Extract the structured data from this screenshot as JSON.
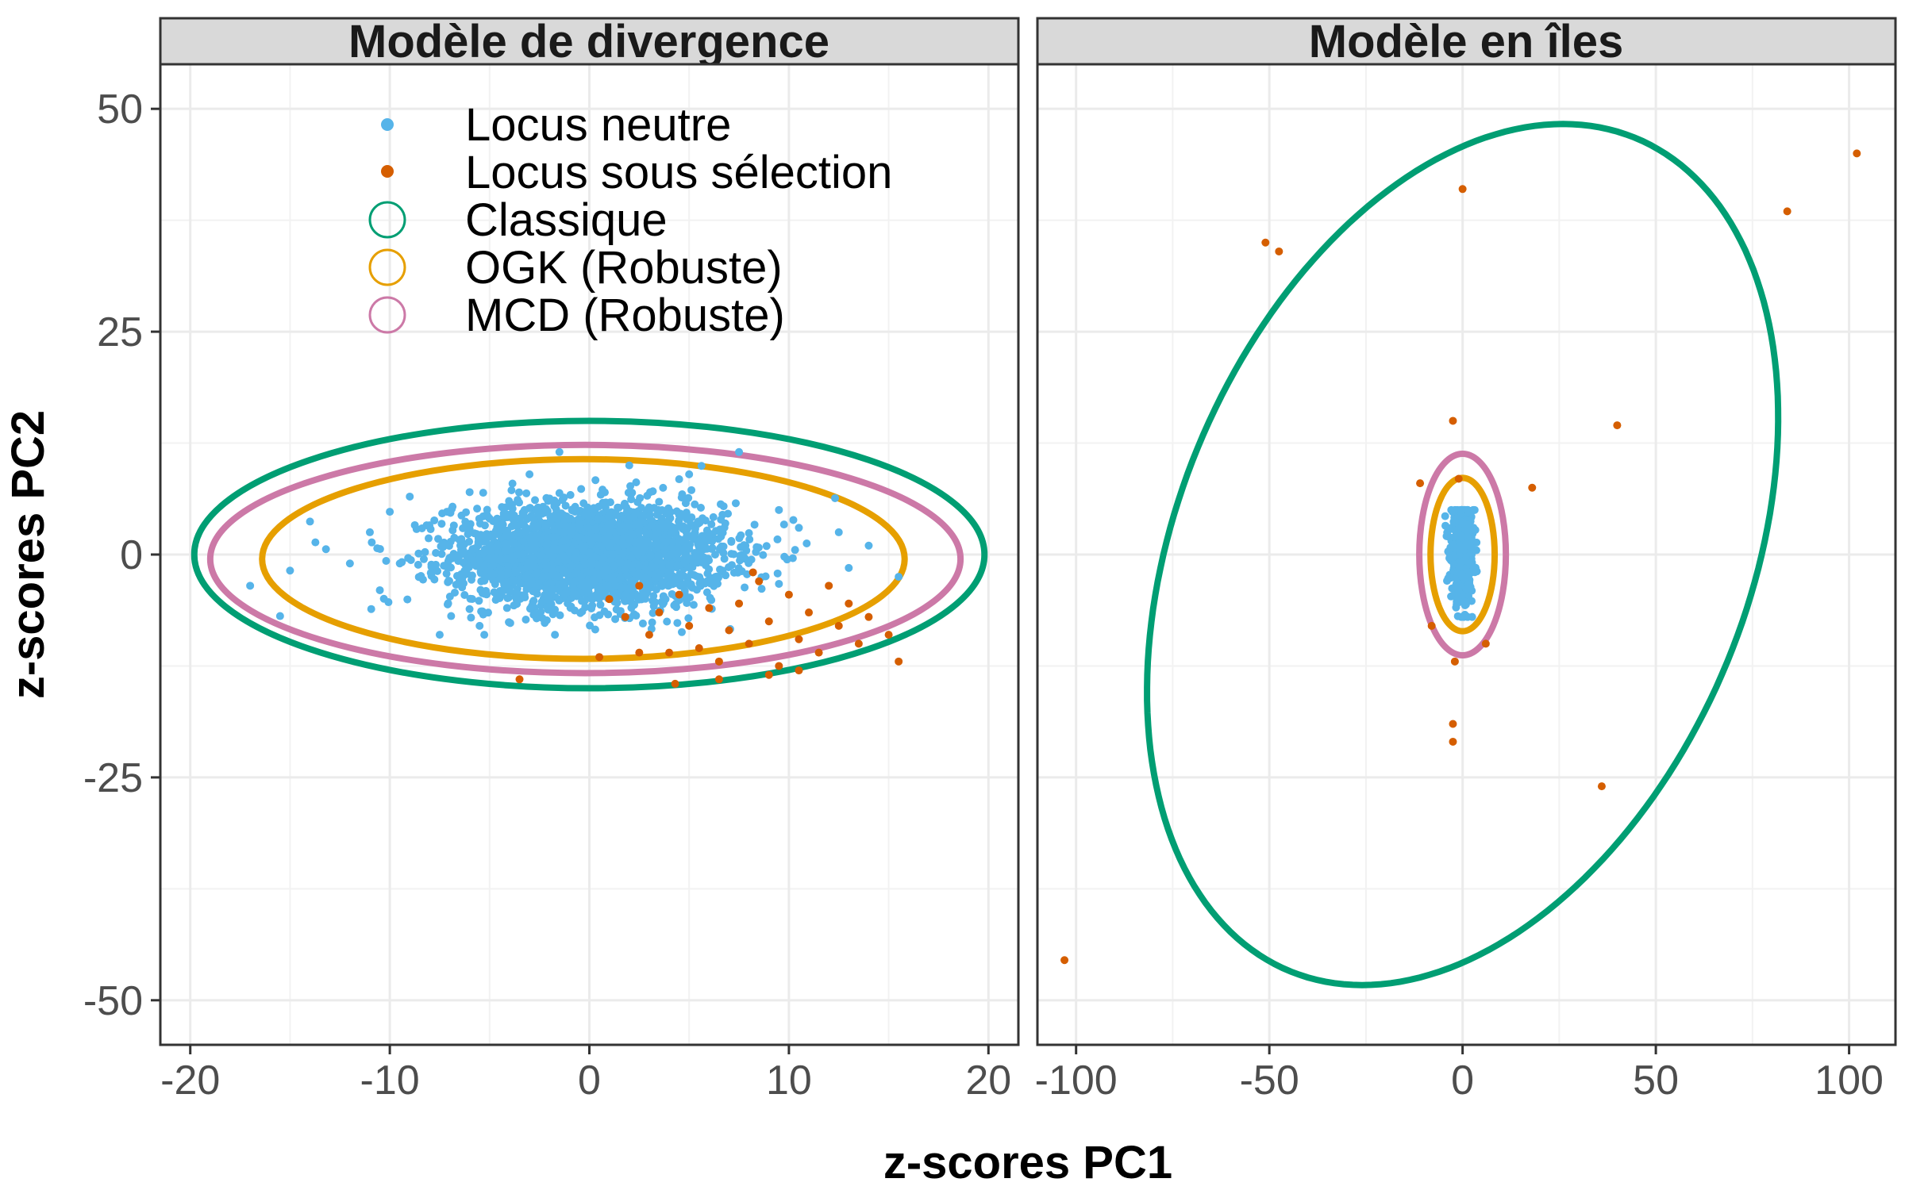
{
  "figure": {
    "x_title": "z-scores PC1",
    "y_title": "z-scores PC2"
  },
  "legend": {
    "entries": [
      {
        "label": "Locus neutre",
        "kind": "point",
        "color": "#56B4E9"
      },
      {
        "label": "Locus sous sélection",
        "kind": "point",
        "color": "#D55E00"
      },
      {
        "label": "Classique",
        "kind": "ring",
        "color": "#009E73"
      },
      {
        "label": "OGK (Robuste)",
        "kind": "ring",
        "color": "#E69F00"
      },
      {
        "label": "MCD (Robuste)",
        "kind": "ring",
        "color": "#CC79A7"
      }
    ]
  },
  "chart_data": [
    {
      "type": "scatter",
      "facet": "Modèle de divergence",
      "xlim": [
        -21.5,
        21.5
      ],
      "ylim": [
        -55,
        55
      ],
      "x_ticks": [
        -20,
        -10,
        0,
        10,
        20
      ],
      "x_tick_labels": [
        "-20",
        "-10",
        "0",
        "10",
        "20"
      ],
      "y_ticks": [
        -50,
        -25,
        0,
        25,
        50
      ],
      "y_tick_labels": [
        "-50",
        "-25",
        "0",
        "25",
        "50"
      ],
      "grid": true,
      "legend_position": "top-left",
      "neutral_cloud": {
        "n": 2600,
        "center": [
          0,
          0
        ],
        "sd": [
          3.4,
          2.9
        ],
        "approx_x_range": [
          -17,
          16
        ],
        "approx_y_range": [
          -9,
          12
        ]
      },
      "neutral_points": [
        [
          -17,
          -3.5
        ],
        [
          -15.5,
          -6.9
        ],
        [
          -15,
          -1.8
        ],
        [
          -14,
          3.7
        ],
        [
          -13.2,
          0.6
        ],
        [
          -12,
          -1
        ],
        [
          -11,
          2.5
        ],
        [
          -10.5,
          -4
        ],
        [
          -10,
          4.8
        ],
        [
          -9.5,
          -1
        ],
        [
          -9,
          6.5
        ],
        [
          -8.5,
          -2.5
        ],
        [
          -7.5,
          -9
        ],
        [
          -6,
          7
        ],
        [
          -5.5,
          -8
        ],
        [
          -3,
          9
        ],
        [
          -1.5,
          11.5
        ],
        [
          2,
          10
        ],
        [
          5,
          9
        ],
        [
          7.5,
          11.5
        ],
        [
          9.5,
          5
        ],
        [
          10.5,
          3
        ],
        [
          12.5,
          2.5
        ],
        [
          13,
          -1.5
        ],
        [
          14,
          1
        ],
        [
          15.5,
          -2.5
        ]
      ],
      "selected_points": [
        [
          1,
          -5
        ],
        [
          1.8,
          -7
        ],
        [
          2.5,
          -3.5
        ],
        [
          3,
          -9
        ],
        [
          3.5,
          -6.5
        ],
        [
          4,
          -11
        ],
        [
          4.5,
          -4.5
        ],
        [
          5,
          -8
        ],
        [
          5.5,
          -10.5
        ],
        [
          6,
          -6
        ],
        [
          6.5,
          -12
        ],
        [
          7,
          -8.5
        ],
        [
          7.5,
          -5.5
        ],
        [
          8,
          -10
        ],
        [
          8.5,
          -3
        ],
        [
          9,
          -7.5
        ],
        [
          9.5,
          -12.5
        ],
        [
          10,
          -4.5
        ],
        [
          10.5,
          -9.5
        ],
        [
          11,
          -6.5
        ],
        [
          11.5,
          -11
        ],
        [
          12,
          -3.5
        ],
        [
          12.5,
          -8
        ],
        [
          13,
          -5.5
        ],
        [
          13.5,
          -10
        ],
        [
          14,
          -7
        ],
        [
          15,
          -9
        ],
        [
          15.5,
          -12
        ],
        [
          4.3,
          -14.5
        ],
        [
          6.5,
          -14
        ],
        [
          9,
          -13.5
        ],
        [
          10.5,
          -13
        ],
        [
          -3.5,
          -14
        ],
        [
          0.5,
          -11.5
        ],
        [
          2.5,
          -11
        ],
        [
          8.2,
          -2
        ]
      ],
      "ellipses": [
        {
          "name": "Classique",
          "color": "#009E73",
          "cx": 0,
          "cy": 0,
          "rx": 19.8,
          "ry": 15,
          "angle_deg": 0
        },
        {
          "name": "MCD (Robuste)",
          "color": "#CC79A7",
          "cx": -0.2,
          "cy": -0.5,
          "rx": 18.8,
          "ry": 12.8,
          "angle_deg": 0
        },
        {
          "name": "OGK (Robuste)",
          "color": "#E69F00",
          "cx": -0.3,
          "cy": -0.5,
          "rx": 16.1,
          "ry": 11.2,
          "angle_deg": 0
        }
      ]
    },
    {
      "type": "scatter",
      "facet": "Modèle en îles",
      "xlim": [
        -110,
        112
      ],
      "ylim": [
        -55,
        55
      ],
      "x_ticks": [
        -100,
        -50,
        0,
        50,
        100
      ],
      "x_tick_labels": [
        "-100",
        "-50",
        "0",
        "50",
        "100"
      ],
      "y_ticks": [
        -50,
        -25,
        0,
        25,
        50
      ],
      "y_tick_labels": [
        "-50",
        "-25",
        "0",
        "25",
        "50"
      ],
      "grid": true,
      "neutral_cloud": {
        "n": 600,
        "center": [
          0,
          0
        ],
        "sd": [
          1.5,
          2.6
        ],
        "approx_x_range": [
          -5,
          5
        ],
        "approx_y_range": [
          -7,
          5
        ]
      },
      "neutral_points": [],
      "selected_points": [
        [
          102,
          45
        ],
        [
          84,
          38.5
        ],
        [
          0,
          41
        ],
        [
          -51,
          35
        ],
        [
          -47.5,
          34
        ],
        [
          -2.5,
          15
        ],
        [
          40,
          14.5
        ],
        [
          -11,
          8
        ],
        [
          18,
          7.5
        ],
        [
          -2,
          -12
        ],
        [
          -2.5,
          -19
        ],
        [
          -2.5,
          -21
        ],
        [
          36,
          -26
        ],
        [
          -103,
          -45.5
        ],
        [
          -8,
          -8
        ],
        [
          6,
          -10
        ],
        [
          -1,
          8.5
        ]
      ],
      "ellipses": [
        {
          "name": "Classique",
          "color": "#009E73",
          "cx": 0,
          "cy": 0,
          "rx": 77.4,
          "ry": 48.3,
          "angle_deg": 0,
          "skew_top_x": 26,
          "note_shape": "tilted"
        },
        {
          "name": "MCD (Robuste)",
          "color": "#CC79A7",
          "cx": 0,
          "cy": 0,
          "rx": 11.2,
          "ry": 11.3,
          "angle_deg": 0
        },
        {
          "name": "OGK (Robuste)",
          "color": "#E69F00",
          "cx": 0,
          "cy": 0,
          "rx": 8.3,
          "ry": 8.6,
          "angle_deg": 0
        }
      ]
    }
  ]
}
